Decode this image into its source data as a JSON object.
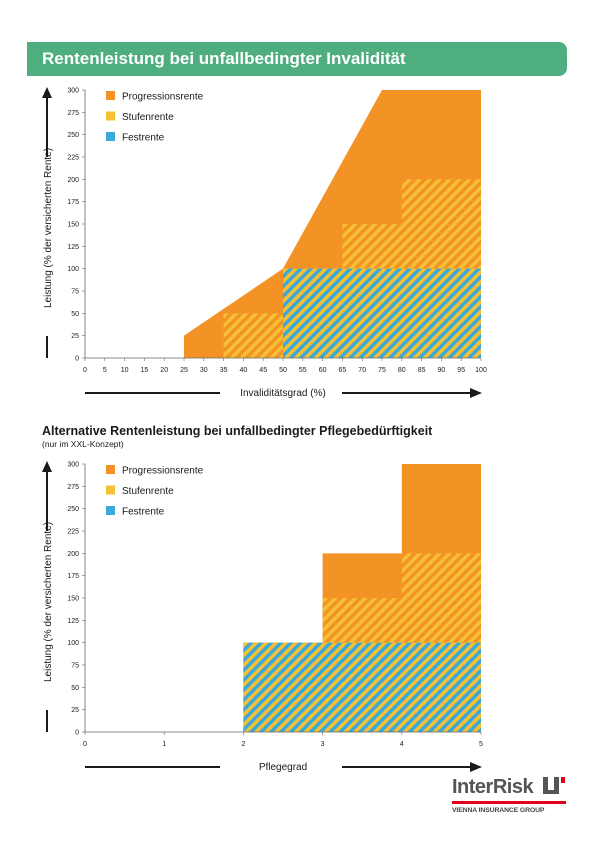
{
  "page": {
    "title": "Rentenleistung bei unfallbedingter Invalidität",
    "section2_title": "Alternative Rentenleistung bei unfallbedingter Pflegebedürftigkeit",
    "section2_subtitle": "(nur im XXL-Konzept)",
    "brand": {
      "name": "InterRisk",
      "group": "VIENNA INSURANCE GROUP",
      "red": "#e2001a"
    }
  },
  "colors": {
    "progression": "#f39325",
    "stufen": "#f6c034",
    "fest": "#3aa8d8",
    "banner": "#4fae80"
  },
  "chart_data": [
    {
      "type": "area",
      "stacked": true,
      "xlabel": "Invaliditätsgrad (%)",
      "ylabel": "Leistung (% der versicherten Rente)",
      "xlim": [
        0,
        100
      ],
      "ylim": [
        0,
        300
      ],
      "x_ticks": [
        "0",
        "5",
        "10",
        "15",
        "20",
        "25",
        "30",
        "35",
        "40",
        "45",
        "50",
        "55",
        "60",
        "65",
        "70",
        "75",
        "80",
        "85",
        "90",
        "95",
        "100"
      ],
      "y_ticks": [
        "0",
        "25",
        "50",
        "75",
        "100",
        "125",
        "150",
        "175",
        "200",
        "225",
        "250",
        "275",
        "300"
      ],
      "legend": [
        "Progressionsrente",
        "Stufenrente",
        "Festrente"
      ],
      "legend_position": "top-left",
      "series": [
        {
          "name": "Progressionsrente",
          "x": [
            0,
            25,
            25,
            50,
            75,
            100
          ],
          "y": [
            0,
            0,
            25,
            100,
            300,
            300
          ]
        },
        {
          "name": "Stufenrente",
          "steps": [
            [
              0,
              35,
              0
            ],
            [
              35,
              50,
              50
            ],
            [
              50,
              65,
              100
            ],
            [
              65,
              80,
              150
            ],
            [
              80,
              100,
              200
            ]
          ]
        },
        {
          "name": "Festrente",
          "steps": [
            [
              0,
              50,
              0
            ],
            [
              50,
              100,
              100
            ]
          ]
        }
      ]
    },
    {
      "type": "area",
      "stacked": true,
      "xlabel": "Pflegegrad",
      "ylabel": "Leistung (% der versicherten Rente)",
      "xlim": [
        0,
        5
      ],
      "ylim": [
        0,
        300
      ],
      "x_ticks": [
        "0",
        "1",
        "2",
        "3",
        "4",
        "5"
      ],
      "y_ticks": [
        "0",
        "25",
        "50",
        "75",
        "100",
        "125",
        "150",
        "175",
        "200",
        "225",
        "250",
        "275",
        "300"
      ],
      "legend": [
        "Progressionsrente",
        "Stufenrente",
        "Festrente"
      ],
      "legend_position": "top-left",
      "series": [
        {
          "name": "Progressionsrente",
          "steps": [
            [
              0,
              2,
              0
            ],
            [
              2,
              3,
              100
            ],
            [
              3,
              4,
              200
            ],
            [
              4,
              5,
              300
            ]
          ]
        },
        {
          "name": "Stufenrente",
          "steps": [
            [
              0,
              2,
              0
            ],
            [
              2,
              3,
              100
            ],
            [
              3,
              4,
              150
            ],
            [
              4,
              5,
              200
            ]
          ]
        },
        {
          "name": "Festrente",
          "steps": [
            [
              0,
              2,
              0
            ],
            [
              2,
              5,
              100
            ]
          ]
        }
      ]
    }
  ]
}
